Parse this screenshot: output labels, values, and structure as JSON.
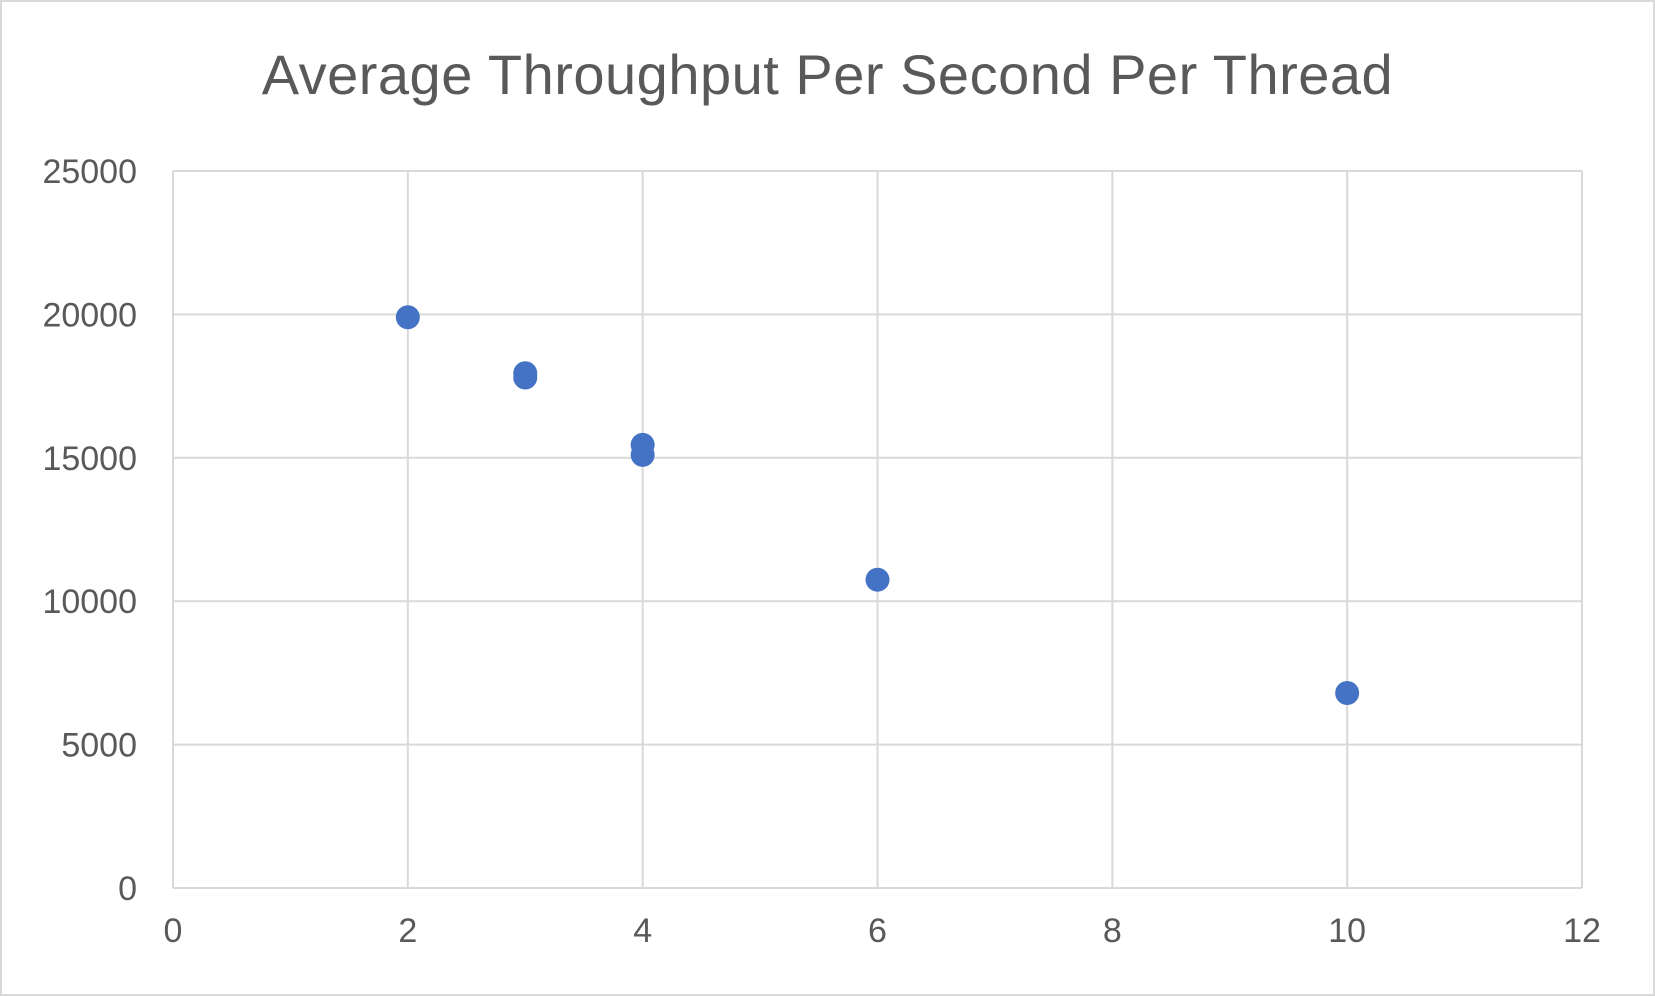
{
  "chart_data": {
    "type": "scatter",
    "title": "Average Throughput Per Second Per Thread",
    "xlabel": "",
    "ylabel": "",
    "xlim": [
      0,
      12
    ],
    "ylim": [
      0,
      25000
    ],
    "x_ticks": [
      "0",
      "2",
      "4",
      "6",
      "8",
      "10",
      "12"
    ],
    "y_ticks": [
      "0",
      "5000",
      "10000",
      "15000",
      "20000",
      "25000"
    ],
    "grid": true,
    "legend": "none",
    "series": [
      {
        "color": "#4472c4",
        "points": [
          {
            "x": 2,
            "y": 19900
          },
          {
            "x": 3,
            "y": 17950
          },
          {
            "x": 3,
            "y": 17800
          },
          {
            "x": 4,
            "y": 15450
          },
          {
            "x": 4,
            "y": 15100
          },
          {
            "x": 6,
            "y": 10750
          },
          {
            "x": 10,
            "y": 6800
          }
        ]
      }
    ]
  },
  "colors": {
    "grid": "#d9d9d9",
    "text": "#595959",
    "marker": "#4472c4"
  }
}
